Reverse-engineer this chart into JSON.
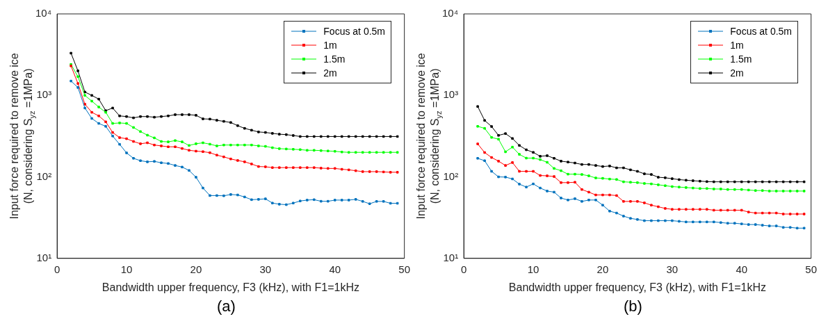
{
  "chart_data": [
    {
      "type": "line",
      "xlabel": "Bandwidth upper frequency, F3 (kHz), with F1=1kHz",
      "ylabel": "Input force required to remove ice\n(N, considering S$_{yz}$ =1MPa)",
      "annotations": [
        "(a)"
      ],
      "x": [
        2,
        3,
        4,
        5,
        6,
        7,
        8,
        9,
        10,
        11,
        12,
        13,
        14,
        15,
        16,
        17,
        18,
        19,
        20,
        21,
        22,
        23,
        24,
        25,
        26,
        27,
        28,
        29,
        30,
        31,
        32,
        33,
        34,
        35,
        36,
        37,
        38,
        39,
        40,
        41,
        42,
        43,
        44,
        45,
        46,
        47,
        48,
        49
      ],
      "xlim": [
        0,
        50
      ],
      "xticks": [
        0,
        10,
        20,
        30,
        40,
        50
      ],
      "ylim": [
        10,
        10000
      ],
      "yticks": [
        {
          "value": 10,
          "label": "10¹"
        },
        {
          "value": 100,
          "label": "10²"
        },
        {
          "value": 1000,
          "label": "10³"
        },
        {
          "value": 10000,
          "label": "10⁴"
        }
      ],
      "log": true,
      "grid": false,
      "legend": "top right",
      "marker": "square",
      "line_style": "solid",
      "series": [
        {
          "name": "Focus at 0.5m",
          "color": "#0072bd",
          "values": [
            1500,
            1250,
            700,
            521,
            453,
            417,
            317,
            251,
            197,
            169,
            158,
            153,
            155,
            149,
            146,
            138,
            132,
            120,
            99,
            73,
            59,
            59,
            58.6,
            60.8,
            60,
            56.7,
            52.5,
            53,
            53.8,
            47.7,
            46.2,
            45.6,
            47.7,
            50.6,
            51.9,
            52.5,
            50.2,
            50.2,
            51.9,
            51.9,
            51.9,
            53,
            50,
            46.8,
            50,
            50,
            47.4,
            47.4
          ]
        },
        {
          "name": "1m",
          "color": "#ff0000",
          "values": [
            2300,
            1400,
            780,
            620,
            560,
            474,
            351,
            303,
            294,
            272,
            255,
            262,
            246,
            240,
            234,
            234,
            223,
            212,
            207,
            204,
            198,
            185,
            176,
            166,
            159,
            153,
            144,
            134,
            133,
            130,
            130,
            130,
            130,
            130,
            130,
            130,
            128,
            127,
            127,
            124,
            122,
            119,
            116,
            116,
            116,
            115,
            114,
            114
          ]
        },
        {
          "name": "1.5m",
          "color": "#00ff00",
          "values": [
            2400,
            1700,
            1000,
            850,
            720,
            620,
            453,
            459,
            453,
            404,
            360,
            325,
            301,
            272,
            269,
            279,
            269,
            243,
            255,
            262,
            252,
            240,
            246,
            246,
            246,
            246,
            246,
            240,
            237,
            228,
            222,
            220,
            218,
            216,
            212,
            212,
            210,
            208,
            206,
            202,
            200,
            200,
            200,
            200,
            200,
            200,
            200,
            200
          ]
        },
        {
          "name": "2m",
          "color": "#000000",
          "values": [
            3300,
            2000,
            1100,
            1000,
            900,
            650,
            700,
            560,
            550,
            530,
            550,
            550,
            540,
            550,
            560,
            580,
            580,
            580,
            570,
            515,
            512,
            495,
            480,
            465,
            425,
            394,
            374,
            356,
            351,
            342,
            334,
            330,
            322,
            313,
            313,
            313,
            313,
            313,
            313,
            313,
            313,
            313,
            313,
            313,
            313,
            313,
            313,
            313
          ]
        }
      ]
    },
    {
      "type": "line",
      "xlabel": "Bandwidth upper frequency, F3 (kHz), with F1=1kHz",
      "ylabel": "Input force required to remove ice\n(N, considering S$_{yz}$ =1MPa)",
      "annotations": [
        "(b)"
      ],
      "x": [
        2,
        3,
        4,
        5,
        6,
        7,
        8,
        9,
        10,
        11,
        12,
        13,
        14,
        15,
        16,
        17,
        18,
        19,
        20,
        21,
        22,
        23,
        24,
        25,
        26,
        27,
        28,
        29,
        30,
        31,
        32,
        33,
        34,
        35,
        36,
        37,
        38,
        39,
        40,
        41,
        42,
        43,
        44,
        45,
        46,
        47,
        48,
        49
      ],
      "xlim": [
        0,
        50
      ],
      "xticks": [
        0,
        10,
        20,
        30,
        40,
        50
      ],
      "ylim": [
        10,
        10000
      ],
      "yticks": [
        {
          "value": 10,
          "label": "10¹"
        },
        {
          "value": 100,
          "label": "10²"
        },
        {
          "value": 1000,
          "label": "10³"
        },
        {
          "value": 10000,
          "label": "10⁴"
        }
      ],
      "log": true,
      "grid": false,
      "legend": "top right",
      "marker": "square",
      "line_style": "solid",
      "series": [
        {
          "name": "Focus at 0.5m",
          "color": "#0072bd",
          "values": [
            169,
            158,
            117,
            100,
            99.4,
            94.4,
            81.5,
            75,
            82,
            73,
            67,
            65,
            55,
            52,
            54,
            50,
            52,
            52,
            45,
            38,
            36,
            33,
            31,
            30,
            29,
            29,
            29,
            29,
            29,
            28.5,
            28,
            28,
            28,
            28,
            28,
            27.5,
            27,
            27,
            26.5,
            26,
            26,
            25.5,
            25,
            25,
            24,
            24,
            23.5,
            23.5
          ]
        },
        {
          "name": "1m",
          "color": "#ff0000",
          "values": [
            254,
            199,
            173,
            156,
            138,
            150,
            117,
            117,
            117,
            104,
            103,
            101,
            85,
            85,
            86,
            70,
            65,
            60,
            60,
            60,
            59,
            50,
            50,
            50,
            48,
            45,
            43,
            41,
            40,
            40,
            40,
            40,
            40,
            40,
            39,
            39,
            39,
            39,
            39,
            37,
            36,
            36,
            36,
            36,
            35,
            35,
            35,
            35
          ]
        },
        {
          "name": "1.5m",
          "color": "#00ff00",
          "values": [
            417,
            394,
            305,
            290,
            203,
            232,
            189,
            170,
            170,
            163,
            151,
            127,
            119,
            108,
            108,
            107,
            103,
            97,
            96,
            94,
            93,
            87,
            86,
            85,
            83,
            82,
            80,
            78,
            76,
            75,
            74,
            73,
            72,
            72,
            71,
            71,
            70,
            70,
            70,
            69,
            68,
            68,
            67,
            67,
            67,
            67,
            67,
            67
          ]
        },
        {
          "name": "2m",
          "color": "#000000",
          "values": [
            731,
            493,
            415,
            323,
            340,
            296,
            243,
            215,
            200,
            179,
            182,
            169,
            156,
            152,
            148,
            142,
            142,
            138,
            134,
            136,
            129,
            129,
            122,
            117,
            109,
            107,
            99,
            97.5,
            95,
            92.6,
            91,
            89.7,
            88.6,
            87.5,
            87,
            87,
            87,
            87,
            87,
            87,
            87,
            87,
            87,
            87,
            87,
            87,
            87,
            87
          ]
        }
      ]
    }
  ]
}
